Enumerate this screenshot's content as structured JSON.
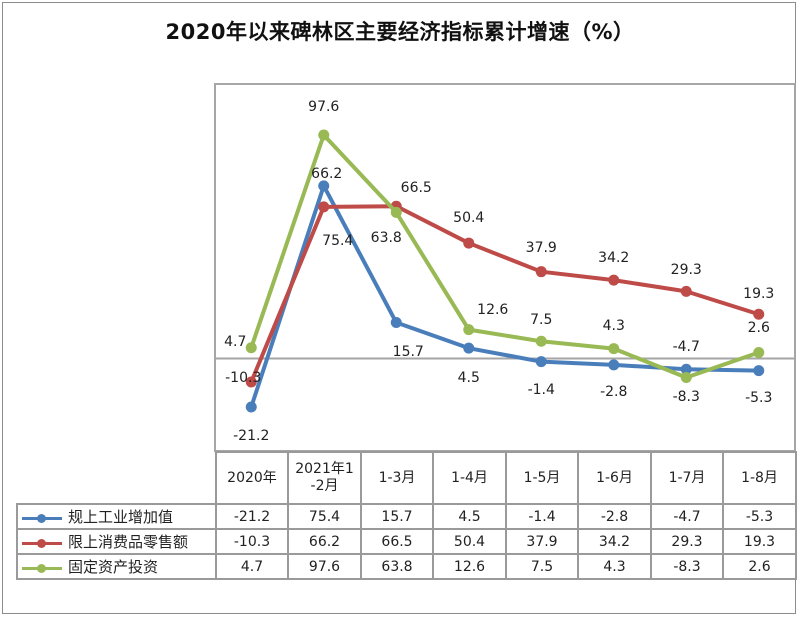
{
  "chart_data": {
    "type": "line",
    "title": "2020年以来碑林区主要经济指标累计增速（%）",
    "categories": [
      "2020年",
      "2021年1-2月",
      "1-3月",
      "1-4月",
      "1-5月",
      "1-6月",
      "1-7月",
      "1-8月"
    ],
    "category_labels": [
      "2020年",
      "2021年1\n-2月",
      "1-3月",
      "1-4月",
      "1-5月",
      "1-6月",
      "1-7月",
      "1-8月"
    ],
    "series": [
      {
        "name": "规上工业增加值",
        "color": "#4a7ebb",
        "values": [
          -21.2,
          75.4,
          15.7,
          4.5,
          -1.4,
          -2.8,
          -4.7,
          -5.3
        ]
      },
      {
        "name": "限上消费品零售额",
        "color": "#be4b48",
        "values": [
          -10.3,
          66.2,
          66.5,
          50.4,
          37.9,
          34.2,
          29.3,
          19.3
        ]
      },
      {
        "name": "固定资产投资",
        "color": "#98b954",
        "values": [
          4.7,
          97.6,
          63.8,
          12.6,
          7.5,
          4.3,
          -8.3,
          2.6
        ]
      }
    ],
    "ylim": [
      -42,
      118
    ],
    "xlabel": "",
    "ylabel": "",
    "grid": false,
    "legend": "bottom-data-table",
    "data_labels": true
  }
}
